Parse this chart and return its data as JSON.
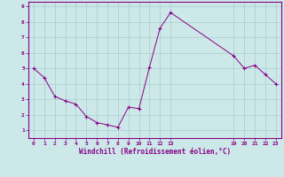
{
  "x": [
    0,
    1,
    2,
    3,
    4,
    5,
    6,
    7,
    8,
    9,
    10,
    11,
    12,
    13,
    19,
    20,
    21,
    22,
    23
  ],
  "y": [
    5.0,
    4.4,
    3.2,
    2.9,
    2.7,
    1.9,
    1.5,
    1.35,
    1.2,
    2.5,
    2.4,
    5.1,
    7.6,
    8.6,
    5.8,
    5.0,
    5.2,
    4.6,
    4.0
  ],
  "line_color": "#880088",
  "marker_color": "#880088",
  "bg_color": "#cce8e8",
  "grid_color": "#aacccc",
  "axis_label_color": "#880088",
  "xlabel": "Windchill (Refroidissement éolien,°C)",
  "xlim": [
    -0.5,
    23.5
  ],
  "ylim": [
    0.5,
    9.3
  ],
  "yticks": [
    1,
    2,
    3,
    4,
    5,
    6,
    7,
    8,
    9
  ],
  "xticks": [
    0,
    1,
    2,
    3,
    4,
    5,
    6,
    7,
    8,
    9,
    10,
    11,
    12,
    13,
    19,
    20,
    21,
    22,
    23
  ],
  "tick_label_color": "#880088",
  "border_color": "#880088"
}
